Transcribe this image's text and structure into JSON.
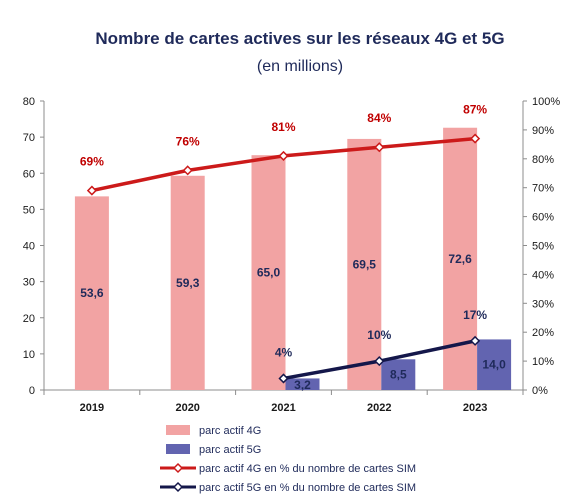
{
  "chart_data": {
    "type": "bar",
    "title": "Nombre de cartes actives sur les réseaux 4G et 5G",
    "subtitle": "(en millions)",
    "categories": [
      "2019",
      "2020",
      "2021",
      "2022",
      "2023"
    ],
    "y_left": {
      "min": 0,
      "max": 80,
      "ticks": [
        "0",
        "10",
        "20",
        "30",
        "40",
        "50",
        "60",
        "70",
        "80"
      ]
    },
    "y_right": {
      "min": 0,
      "max": 100,
      "ticks": [
        "0%",
        "10%",
        "20%",
        "30%",
        "40%",
        "50%",
        "60%",
        "70%",
        "80%",
        "90%",
        "100%"
      ]
    },
    "series": [
      {
        "name": "parc actif 4G",
        "kind": "bar",
        "color": "#f2a3a3",
        "values": [
          53.6,
          59.3,
          65.0,
          69.5,
          72.6
        ],
        "labels": [
          "53,6",
          "59,3",
          "65,0",
          "69,5",
          "72,6"
        ]
      },
      {
        "name": "parc actif 5G",
        "kind": "bar",
        "color": "#6264b0",
        "values": [
          null,
          null,
          3.2,
          8.5,
          14.0
        ],
        "labels": [
          "",
          "",
          "3,2",
          "8,5",
          "14,0"
        ]
      },
      {
        "name": "parc actif 4G en % du nombre de cartes SIM",
        "kind": "line",
        "axis": "right",
        "color": "#cc1a1a",
        "values": [
          69,
          76,
          81,
          84,
          87
        ],
        "labels": [
          "69%",
          "76%",
          "81%",
          "84%",
          "87%"
        ]
      },
      {
        "name": "parc actif 5G en % du nombre de cartes SIM",
        "kind": "line",
        "axis": "right",
        "color": "#14174a",
        "values": [
          null,
          null,
          4,
          10,
          17
        ],
        "labels": [
          "",
          "",
          "4%",
          "10%",
          "17%"
        ]
      }
    ],
    "legend_position": "bottom"
  }
}
